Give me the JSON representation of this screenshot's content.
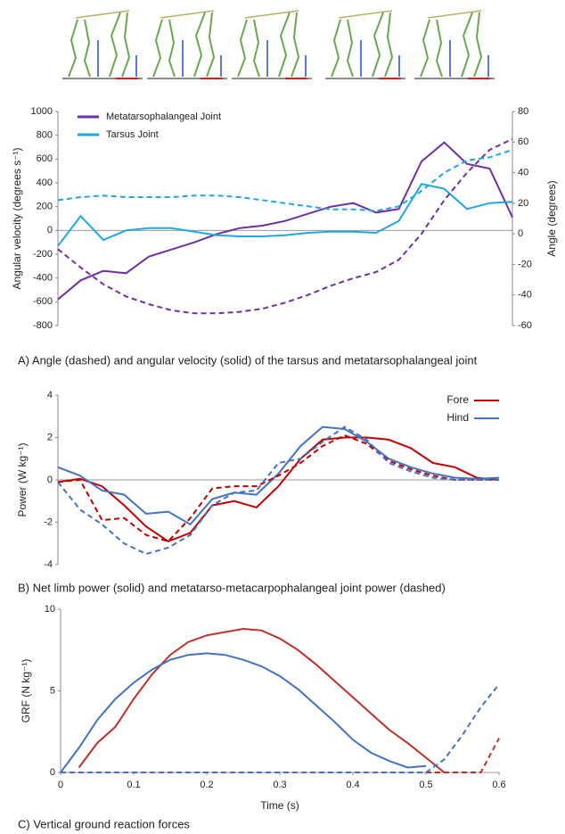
{
  "chart_data": [
    {
      "type": "line",
      "caption": "A) Angle (dashed) and angular velocity (solid) of the tarsus and metatarsophalangeal joint",
      "ylabel": "Angular velocity (degrees s⁻¹)",
      "y2label": "Angle (degrees)",
      "categories": [
        null,
        null,
        null,
        null,
        null,
        null,
        null,
        null,
        null,
        null,
        null,
        null,
        null,
        null,
        null,
        null,
        null,
        null,
        null,
        null,
        null
      ],
      "ylim": [
        -800,
        1000
      ],
      "yticks": [
        -800,
        -600,
        -400,
        -200,
        0,
        200,
        400,
        600,
        800,
        1000
      ],
      "y2lim": [
        -60,
        80
      ],
      "y2ticks": [
        -60,
        -40,
        -20,
        0,
        20,
        40,
        60,
        80
      ],
      "legend": "top-left",
      "series": [
        {
          "name": "Metatarsophalangeal Joint",
          "color": "#7030a0",
          "values": [
            -580,
            -420,
            -340,
            -360,
            -220,
            -160,
            -100,
            -30,
            20,
            40,
            80,
            140,
            200,
            230,
            150,
            180,
            580,
            740,
            560,
            520,
            110
          ]
        },
        {
          "name": "Tarsus Joint",
          "color": "#1fa8e0",
          "values": [
            -130,
            120,
            -80,
            0,
            20,
            20,
            -10,
            -40,
            -50,
            -50,
            -40,
            -20,
            -10,
            -10,
            -20,
            80,
            390,
            350,
            180,
            230,
            240
          ]
        },
        {
          "color": "#7030a0",
          "dash": true,
          "axis": "y2",
          "values": [
            -10,
            -22,
            -33,
            -41,
            -46,
            -50,
            -52,
            -52,
            -51,
            -49,
            -45,
            -40,
            -34,
            -29,
            -25,
            -17,
            0,
            22,
            40,
            55,
            62
          ]
        },
        {
          "color": "#1fa8e0",
          "dash": true,
          "axis": "y2",
          "values": [
            22,
            24,
            25,
            24,
            24,
            24,
            25,
            25,
            24,
            22,
            20,
            18,
            16,
            16,
            15,
            18,
            28,
            40,
            48,
            50,
            55
          ]
        }
      ]
    },
    {
      "type": "line",
      "caption": "B) Net limb power (solid) and metatarso-metacarpophalangeal joint power (dashed)",
      "ylabel": "Power (W kg⁻¹)",
      "categories": [
        null,
        null,
        null,
        null,
        null,
        null,
        null,
        null,
        null,
        null,
        null,
        null,
        null,
        null,
        null,
        null,
        null,
        null,
        null,
        null,
        null
      ],
      "ylim": [
        -4,
        4
      ],
      "yticks": [
        -4,
        -2,
        0,
        2,
        4
      ],
      "legend": "top-right",
      "series": [
        {
          "name": "Fore",
          "color": "#c00000",
          "values": [
            -0.1,
            0.05,
            -0.3,
            -1.2,
            -2.2,
            -2.9,
            -2.5,
            -1.2,
            -1.0,
            -1.3,
            -0.3,
            1.0,
            1.9,
            2.0,
            2.0,
            1.9,
            1.5,
            0.8,
            0.6,
            0.1,
            0.0
          ]
        },
        {
          "name": "Hind",
          "color": "#4472c4",
          "values": [
            0.6,
            0.2,
            -0.5,
            -0.7,
            -1.6,
            -1.5,
            -2.1,
            -0.9,
            -0.6,
            -0.7,
            0.3,
            1.6,
            2.5,
            2.4,
            1.8,
            1.0,
            0.6,
            0.3,
            0.1,
            0.05,
            0.1
          ]
        },
        {
          "color": "#c00000",
          "dash": true,
          "values": [
            -0.1,
            0.0,
            -1.9,
            -1.8,
            -2.6,
            -2.9,
            -1.8,
            -0.4,
            -0.3,
            -0.3,
            0.2,
            0.8,
            1.6,
            2.1,
            1.7,
            0.9,
            0.5,
            0.2,
            0,
            0,
            0
          ]
        },
        {
          "color": "#4472c4",
          "dash": true,
          "values": [
            -0.1,
            -1.4,
            -2.1,
            -3.0,
            -3.5,
            -3.2,
            -2.6,
            -1.2,
            -0.6,
            -0.5,
            0.8,
            1.0,
            1.8,
            2.5,
            1.9,
            0.8,
            0.4,
            0.1,
            0,
            0,
            0
          ]
        }
      ]
    },
    {
      "type": "line",
      "caption": "C) Vertical ground reaction forces",
      "ylabel": "GRF (N kg⁻¹)",
      "xlabel": "Time (s)",
      "x": [
        0,
        0.025,
        0.05,
        0.075,
        0.1,
        0.125,
        0.15,
        0.175,
        0.2,
        0.225,
        0.25,
        0.275,
        0.3,
        0.325,
        0.35,
        0.375,
        0.4,
        0.425,
        0.45,
        0.475,
        0.5,
        0.525,
        0.55,
        0.575,
        0.6
      ],
      "xlim": [
        0,
        0.6
      ],
      "xticks": [
        0,
        0.1,
        0.2,
        0.3,
        0.4,
        0.5,
        0.6
      ],
      "ylim": [
        0,
        10
      ],
      "yticks": [
        0,
        5,
        10
      ],
      "series": [
        {
          "color": "#c0302a",
          "values": [
            null,
            0.3,
            1.8,
            2.8,
            4.5,
            6.0,
            7.2,
            8.0,
            8.4,
            8.6,
            8.8,
            8.7,
            8.2,
            7.5,
            6.6,
            5.6,
            4.6,
            3.6,
            2.6,
            1.8,
            0.9,
            0,
            null,
            null,
            null
          ]
        },
        {
          "color": "#4472c4",
          "values": [
            0,
            1.5,
            3.2,
            4.5,
            5.5,
            6.3,
            6.9,
            7.2,
            7.3,
            7.2,
            6.9,
            6.5,
            5.9,
            5.1,
            4.1,
            3.1,
            2.0,
            1.2,
            0.7,
            0.3,
            0.4,
            null,
            null,
            null,
            null
          ]
        },
        {
          "color": "#c0302a",
          "dash": true,
          "values": [
            0,
            0,
            0,
            0,
            0,
            0,
            0,
            0,
            0,
            0,
            0,
            0,
            0,
            0,
            0,
            0,
            0,
            0,
            0,
            0,
            0,
            0,
            0,
            0,
            2.1
          ]
        },
        {
          "color": "#4472c4",
          "dash": true,
          "values": [
            0,
            0,
            0,
            0,
            0,
            0,
            0,
            0,
            0,
            0,
            0,
            0,
            0,
            0,
            0,
            0,
            0,
            0,
            0,
            0,
            0,
            0.8,
            2.3,
            4.0,
            5.4
          ]
        }
      ]
    }
  ]
}
